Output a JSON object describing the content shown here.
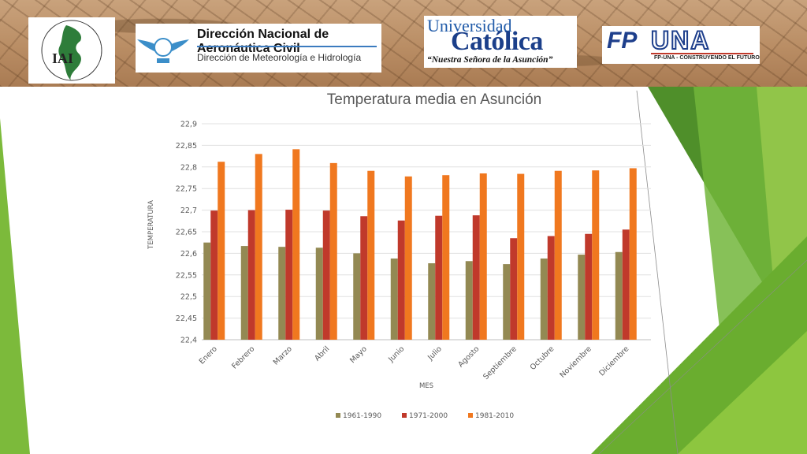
{
  "header": {
    "logo_iai": {
      "text": "IAI",
      "ring_text": "INTER-AMERICAN INSTITUTE FOR GLOBAL CHANGE RESEARCH"
    },
    "logo_dinac": {
      "title": "Dirección Nacional de Aeronáutica Civil",
      "subtitle": "Dirección de Meteorología e Hidrología"
    },
    "logo_uc": {
      "line1": "Universidad",
      "line2": "Católica",
      "line3": "“Nuestra Señora de la Asunción”"
    },
    "logo_fpuna": {
      "mark_fp": "FP",
      "mark_una": "UNA",
      "tagline": "FP-UNA - CONSTRUYENDO EL FUTURO"
    }
  },
  "colors": {
    "green_dark": "#5a9e2f",
    "green_light": "#8dc63f",
    "series1": "#938953",
    "series2": "#c0392b",
    "series3": "#f0781f"
  },
  "chart_data": {
    "type": "bar",
    "title": "Temperatura media en Asunción",
    "xlabel": "MES",
    "ylabel": "TEMPERATURA",
    "ylim": [
      22.4,
      22.9
    ],
    "yticks": [
      "22,4",
      "22,45",
      "22,5",
      "22,55",
      "22,6",
      "22,65",
      "22,7",
      "22,75",
      "22,8",
      "22,85",
      "22,9"
    ],
    "ytick_values": [
      22.4,
      22.45,
      22.5,
      22.55,
      22.6,
      22.65,
      22.7,
      22.75,
      22.8,
      22.85,
      22.9
    ],
    "grid": true,
    "legend_position": "bottom",
    "categories": [
      "Enero",
      "Febrero",
      "Marzo",
      "Abril",
      "Mayo",
      "Junio",
      "Julio",
      "Agosto",
      "Septiembre",
      "Octubre",
      "Noviembre",
      "Diciembre"
    ],
    "series": [
      {
        "name": "1961-1990",
        "color": "#938953",
        "values": [
          22.625,
          22.617,
          22.615,
          22.613,
          22.6,
          22.588,
          22.577,
          22.582,
          22.575,
          22.588,
          22.597,
          22.603
        ]
      },
      {
        "name": "1971-2000",
        "color": "#c0392b",
        "values": [
          22.699,
          22.7,
          22.701,
          22.699,
          22.686,
          22.676,
          22.687,
          22.688,
          22.635,
          22.64,
          22.645,
          22.655
        ]
      },
      {
        "name": "1981-2010",
        "color": "#f0781f",
        "values": [
          22.812,
          22.83,
          22.841,
          22.809,
          22.791,
          22.778,
          22.781,
          22.785,
          22.784,
          22.791,
          22.792,
          22.797
        ]
      }
    ]
  }
}
